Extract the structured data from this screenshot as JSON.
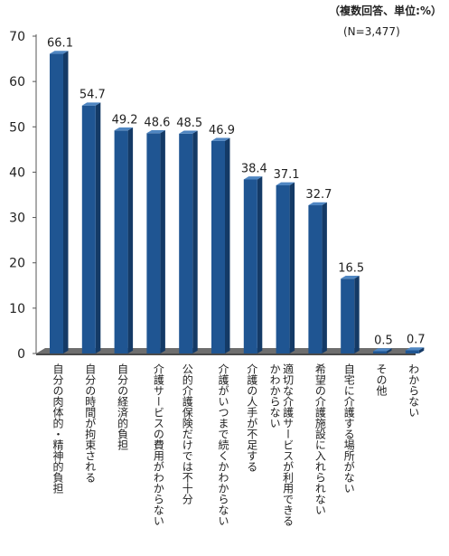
{
  "unit_note": "（複数回答、単位:%）",
  "n_note": "(N=3,477)",
  "chart_data": {
    "type": "bar",
    "ylim": [
      0,
      70
    ],
    "yticks": [
      0,
      10,
      20,
      30,
      40,
      50,
      60,
      70
    ],
    "grid": false,
    "categories": [
      "自分の肉体的・精神的負担",
      "自分の時間が拘束される",
      "自分の経済的負担",
      "介護サービスの費用がわからない",
      "公的介護保険だけでは不十分",
      "介護がいつまで続くかわからない",
      "介護の人手が不足する",
      "適切な介護サービスが利用できるかわからない",
      "希望の介護施設に入れられない",
      "自宅に介護する場所がない",
      "その他",
      "わからない"
    ],
    "values": [
      66.1,
      54.7,
      49.2,
      48.6,
      48.5,
      46.9,
      38.4,
      37.1,
      32.7,
      16.5,
      0.5,
      0.7
    ],
    "value_labels": [
      "66.1",
      "54.7",
      "49.2",
      "48.6",
      "48.5",
      "46.9",
      "38.4",
      "37.1",
      "32.7",
      "16.5",
      "0.5",
      "0.7"
    ],
    "colors": {
      "bar_front": "#1f5592",
      "bar_side": "#143a66",
      "bar_top": "#4f86c2",
      "floor": "#6e6e6e"
    }
  }
}
